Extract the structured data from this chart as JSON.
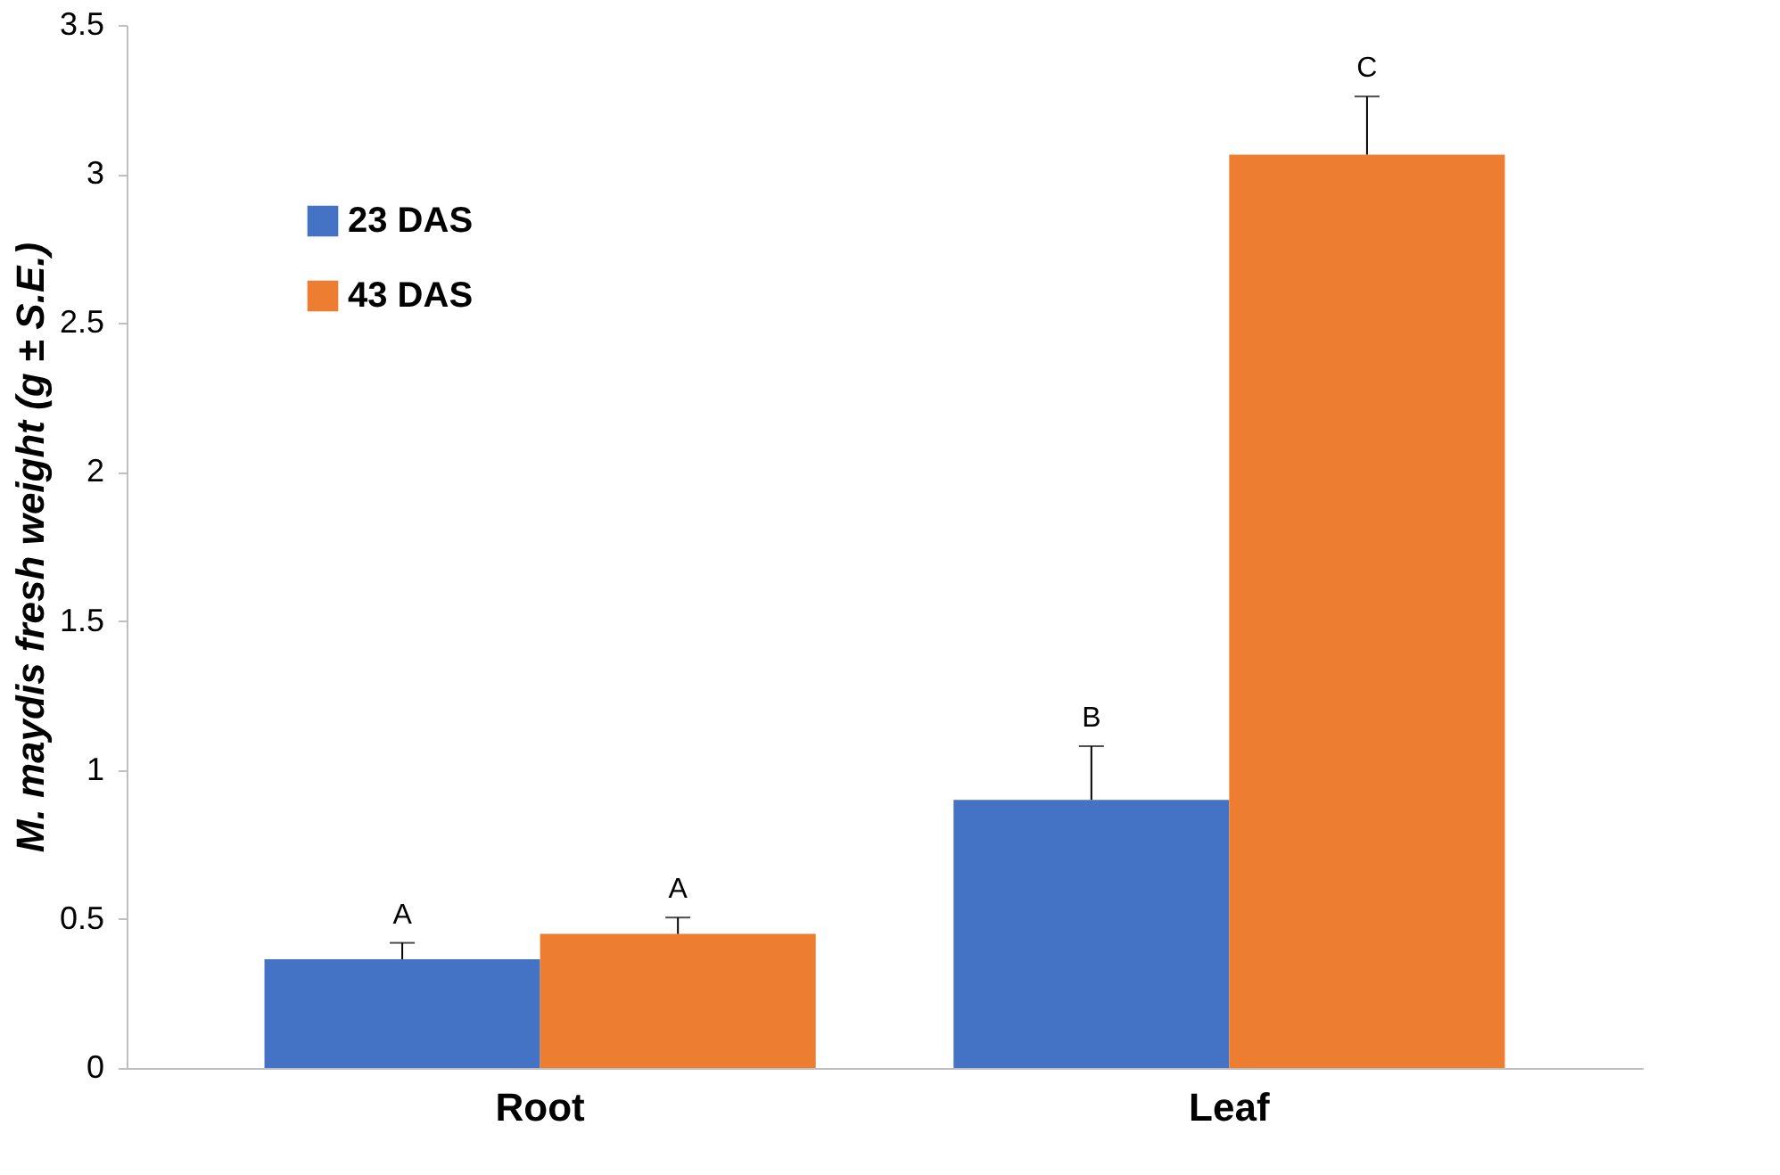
{
  "chart_data": {
    "type": "bar",
    "ylabel": "M. maydis fresh weight (g ± S.E.)",
    "categories": [
      "Root",
      "Leaf"
    ],
    "series": [
      {
        "name": "23 DAS",
        "color": "#4472c4",
        "values": [
          0.365,
          0.9
        ],
        "errors": [
          [
            0.365,
            0.42
          ],
          [
            0.9,
            1.08
          ]
        ],
        "value_labels": [
          "A",
          "B"
        ]
      },
      {
        "name": "43 DAS",
        "color": "#ed7d31",
        "values": [
          0.45,
          3.065
        ],
        "errors": [
          [
            0.45,
            0.505
          ],
          [
            3.065,
            3.26
          ]
        ],
        "value_labels": [
          "A",
          "C"
        ]
      }
    ],
    "ylim": [
      0,
      3.5
    ],
    "yticks": [
      0,
      0.5,
      1,
      1.5,
      2,
      2.5,
      3,
      3.5
    ],
    "grid": false,
    "legend": "top left"
  }
}
